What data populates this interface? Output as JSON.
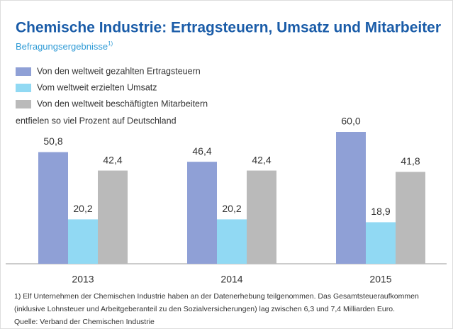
{
  "chart_data": {
    "type": "bar",
    "title": "Chemische Industrie: Ertragsteuern, Umsatz und Mitarbeiter",
    "subtitle": "Befragungsergebnisse",
    "subtitle_note": "1)",
    "value_description": "entfielen so viel Prozent auf Deutschland",
    "categories": [
      "2013",
      "2014",
      "2015"
    ],
    "series": [
      {
        "name": "Von den weltweit gezahlten Ertragsteuern",
        "color": "#8fa0d6",
        "values": [
          50.8,
          46.4,
          60.0
        ],
        "value_labels": [
          "50,8",
          "46,4",
          "60,0"
        ]
      },
      {
        "name": "Vom weltweit erzielten Umsatz",
        "color": "#91d9f3",
        "values": [
          20.2,
          20.2,
          18.9
        ],
        "value_labels": [
          "20,2",
          "20,2",
          "18,9"
        ]
      },
      {
        "name": "Von den weltweit beschäftigten Mitarbeitern",
        "color": "#bababa",
        "values": [
          42.4,
          42.4,
          41.8
        ],
        "value_labels": [
          "42,4",
          "42,4",
          "41,8"
        ]
      }
    ],
    "ylim": [
      0,
      60
    ],
    "footnotes": [
      "1) Elf Unternehmen der Chemischen Industrie haben an der Datenerhebung teilgenommen. Das Gesamtsteueraufkommen",
      "(inklusive Lohnsteuer und Arbeitgeberanteil zu den Sozialversicherungen) lag zwischen 6,3 und 7,4 Milliarden Euro.",
      "Quelle: Verband der Chemischen Industrie"
    ]
  }
}
